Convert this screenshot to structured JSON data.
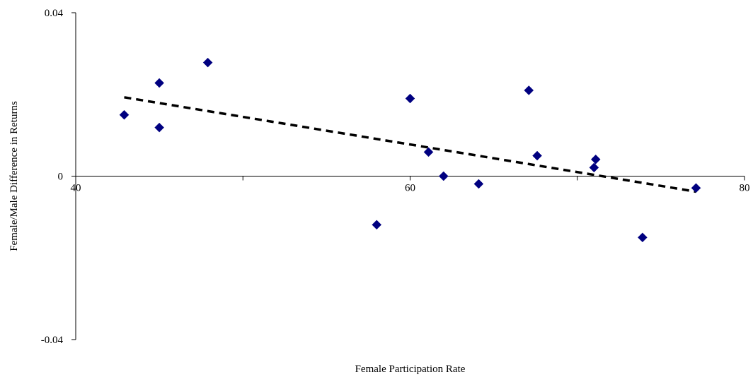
{
  "chart_data": {
    "type": "scatter",
    "title": "",
    "xlabel": "Female Participation Rate",
    "ylabel": "Female/Male Difference in Returns",
    "xlim": [
      40,
      80
    ],
    "ylim": [
      -0.04,
      0.04
    ],
    "x_ticks": [
      40,
      60,
      80
    ],
    "x_tick_labels": [
      "40",
      "60",
      "80"
    ],
    "x_minor_ticks": [
      50,
      70
    ],
    "y_ticks": [
      0.04,
      0,
      -0.04
    ],
    "y_tick_labels": [
      "0.04",
      "0",
      "-0.04"
    ],
    "grid": false,
    "legend": "none",
    "marker_color": "#000080",
    "series": [
      {
        "marker": "diamond",
        "points": [
          {
            "x": 42.9,
            "y": 0.015
          },
          {
            "x": 45.0,
            "y": 0.0228
          },
          {
            "x": 45.0,
            "y": 0.0119
          },
          {
            "x": 47.9,
            "y": 0.0278
          },
          {
            "x": 58.0,
            "y": -0.0119
          },
          {
            "x": 60.0,
            "y": 0.019
          },
          {
            "x": 61.1,
            "y": 0.0059
          },
          {
            "x": 62.0,
            "y": 0.0
          },
          {
            "x": 64.1,
            "y": -0.0019
          },
          {
            "x": 67.1,
            "y": 0.021
          },
          {
            "x": 67.6,
            "y": 0.005
          },
          {
            "x": 71.0,
            "y": 0.0021
          },
          {
            "x": 71.1,
            "y": 0.0041
          },
          {
            "x": 73.9,
            "y": -0.015
          },
          {
            "x": 77.1,
            "y": -0.0029
          }
        ]
      }
    ],
    "trendline": {
      "type": "linear",
      "style": "dashed",
      "x": [
        42.9,
        77.1
      ],
      "y": [
        0.0193,
        -0.0038
      ]
    }
  }
}
